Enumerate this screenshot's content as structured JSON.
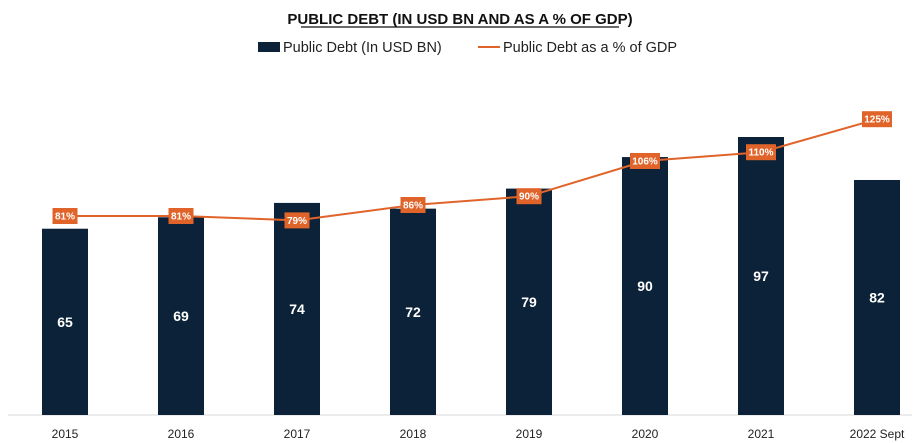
{
  "chart_data": {
    "type": "bar",
    "title": "PUBLIC DEBT (IN USD BN AND AS A % OF GDP)",
    "categories": [
      "2015",
      "2016",
      "2017",
      "2018",
      "2019",
      "2020",
      "2021",
      "2022 Sept"
    ],
    "series": [
      {
        "name": "Public Debt (In USD BN)",
        "type": "bar",
        "color": "#0c2238",
        "values": [
          65,
          69,
          74,
          72,
          79,
          90,
          97,
          82
        ],
        "labels": [
          "65",
          "69",
          "74",
          "72",
          "79",
          "90",
          "97",
          "82"
        ]
      },
      {
        "name": "Public Debt as a % of GDP",
        "type": "line",
        "color": "#e0642a",
        "values": [
          81,
          81,
          79,
          86,
          90,
          106,
          110,
          125
        ],
        "labels": [
          "81%",
          "81%",
          "79%",
          "86%",
          "90%",
          "106%",
          "110%",
          "125%"
        ]
      }
    ],
    "legend_position": "top-center",
    "grid": false
  }
}
